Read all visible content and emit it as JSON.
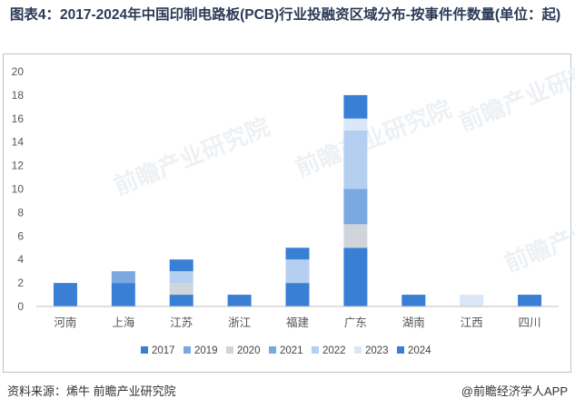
{
  "header": {
    "title": "图表4：2017-2024年中国印制电路板(PCB)行业投融资区域分布-按事件件数量(单位：起)"
  },
  "footer": {
    "source": "资料来源：烯牛 前瞻产业研究院",
    "brand": "@前瞻经济学人APP"
  },
  "watermark": {
    "text": "前瞻产业研究院"
  },
  "colors": {
    "2017": "#3a7fd6",
    "2019": "#7aa8e0",
    "2020": "#d0d5dc",
    "2021": "#7aa8e0",
    "2022": "#b5cff1",
    "2023": "#dbe7f6",
    "2024": "#3a7fd6"
  },
  "chart_data": {
    "type": "bar",
    "stacked": true,
    "categories": [
      "河南",
      "上海",
      "江苏",
      "浙江",
      "福建",
      "广东",
      "湖南",
      "江西",
      "四川"
    ],
    "series": [
      {
        "name": "2017",
        "values": [
          2,
          2,
          1,
          1,
          2,
          5,
          1,
          0,
          1
        ]
      },
      {
        "name": "2019",
        "values": [
          0,
          1,
          0,
          0,
          0,
          0,
          0,
          0,
          0
        ]
      },
      {
        "name": "2020",
        "values": [
          0,
          0,
          1,
          0,
          0,
          2,
          0,
          0,
          0
        ]
      },
      {
        "name": "2021",
        "values": [
          0,
          0,
          0,
          0,
          0,
          3,
          0,
          0,
          0
        ]
      },
      {
        "name": "2022",
        "values": [
          0,
          0,
          1,
          0,
          2,
          5,
          0,
          0,
          0
        ]
      },
      {
        "name": "2023",
        "values": [
          0,
          0,
          0,
          0,
          0,
          1,
          0,
          1,
          0
        ]
      },
      {
        "name": "2024",
        "values": [
          0,
          0,
          1,
          0,
          1,
          2,
          0,
          0,
          0
        ]
      }
    ],
    "ylim": [
      0,
      20
    ],
    "yticks": [
      0,
      2,
      4,
      6,
      8,
      10,
      12,
      14,
      16,
      18,
      20
    ],
    "grid": false,
    "legend_position": "bottom"
  }
}
